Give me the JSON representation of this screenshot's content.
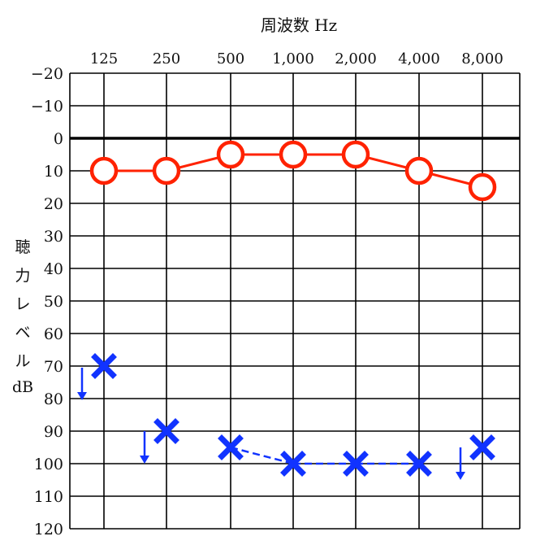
{
  "chart_data": {
    "type": "line",
    "title": "周波数 Hz",
    "xlabel": "周波数 Hz",
    "ylabel": [
      "聴",
      "力",
      "レ",
      "ベ",
      "ル",
      "dB"
    ],
    "categories": [
      "125",
      "250",
      "500",
      "1,000",
      "2,000",
      "4,000",
      "8,000"
    ],
    "y_ticks": [
      "−20",
      "−10",
      "0",
      "10",
      "20",
      "30",
      "40",
      "50",
      "60",
      "70",
      "80",
      "90",
      "100",
      "110",
      "120"
    ],
    "ylim": [
      -20,
      120
    ],
    "y_inverted": true,
    "grid": true,
    "reference_line_y": 0,
    "series": [
      {
        "marker": "circle",
        "color": "#ff2200",
        "line": "solid",
        "values": [
          10,
          10,
          5,
          5,
          5,
          10,
          15
        ]
      },
      {
        "marker": "cross",
        "color": "#1133ff",
        "line": "dashed",
        "values": [
          70,
          90,
          95,
          100,
          100,
          100,
          95
        ],
        "connected_segments": [
          [
            2,
            3
          ],
          [
            3,
            4
          ],
          [
            4,
            5
          ]
        ],
        "no_response_arrows": [
          0,
          1,
          6
        ]
      }
    ]
  }
}
